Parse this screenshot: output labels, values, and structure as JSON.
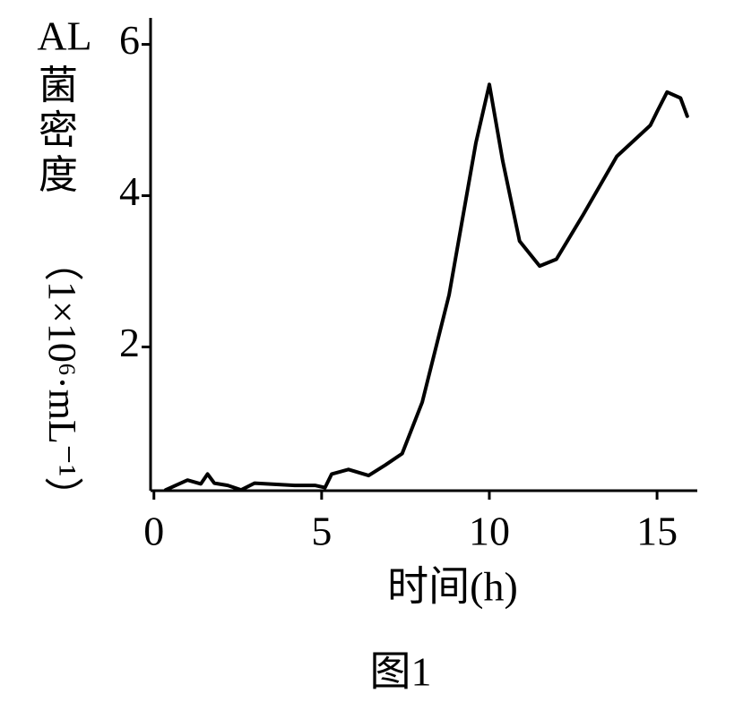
{
  "chart_data": {
    "type": "line",
    "y_label": {
      "prefix": "AL",
      "name": "菌密度",
      "unit": "（1×10⁶·mL⁻¹）"
    },
    "x_label": "时间(h)",
    "caption": "图1",
    "x": [
      0.35,
      1.0,
      1.4,
      1.6,
      1.8,
      2.2,
      2.6,
      3.0,
      4.2,
      4.8,
      5.1,
      5.3,
      5.8,
      6.4,
      6.9,
      7.4,
      8.0,
      8.8,
      9.6,
      10.0,
      10.4,
      10.9,
      11.5,
      12.0,
      12.8,
      13.8,
      14.8,
      15.0,
      15.3,
      15.7,
      15.9
    ],
    "series": [
      {
        "color": "#000000",
        "values": [
          0.11,
          0.24,
          0.19,
          0.32,
          0.2,
          0.17,
          0.11,
          0.2,
          0.17,
          0.17,
          0.14,
          0.32,
          0.38,
          0.3,
          0.44,
          0.59,
          1.27,
          2.69,
          4.7,
          5.47,
          4.46,
          3.4,
          3.07,
          3.16,
          3.75,
          4.52,
          4.93,
          5.11,
          5.37,
          5.29,
          5.05
        ]
      }
    ],
    "xlim": [
      -0.1,
      16.2
    ],
    "xticks": [
      0,
      5,
      10,
      15
    ],
    "ylim": [
      0.1,
      6.35
    ],
    "yticks": [
      2,
      4,
      6
    ]
  }
}
